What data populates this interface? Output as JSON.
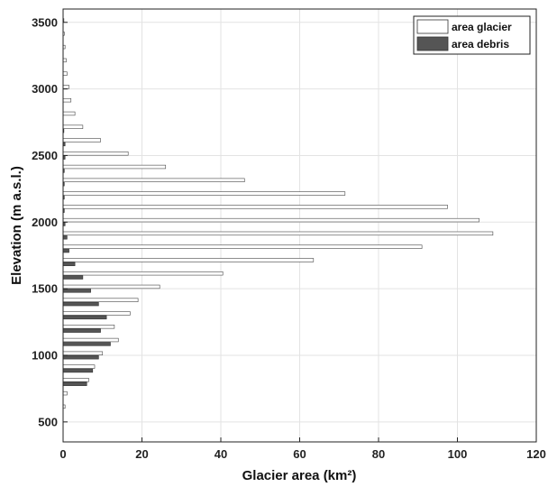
{
  "chart_data": {
    "type": "bar",
    "orientation": "horizontal",
    "xlabel": "Glacier area (km²)",
    "ylabel": "Elevation (m a.s.l.)",
    "xlim": [
      0,
      120
    ],
    "ylim": [
      350,
      3600
    ],
    "x_ticks": [
      0,
      20,
      40,
      60,
      80,
      100,
      120
    ],
    "y_ticks": [
      500,
      1000,
      1500,
      2000,
      2500,
      3000,
      3500
    ],
    "grid": true,
    "legend_position": "top-right",
    "bin_width": 100,
    "series": [
      {
        "name": "area glacier",
        "color": "#ffffff",
        "elevations": [
          3500,
          3400,
          3300,
          3200,
          3100,
          3000,
          2900,
          2800,
          2700,
          2600,
          2500,
          2400,
          2300,
          2200,
          2100,
          2000,
          1900,
          1800,
          1700,
          1600,
          1500,
          1400,
          1300,
          1200,
          1100,
          1000,
          900,
          800,
          700,
          600
        ],
        "values": [
          0.2,
          0.3,
          0.5,
          0.8,
          1.0,
          1.5,
          2.0,
          3.0,
          5.0,
          9.5,
          16.5,
          26.0,
          46.0,
          71.5,
          97.5,
          105.5,
          109.0,
          91.0,
          63.5,
          40.5,
          24.5,
          19.0,
          17.0,
          13.0,
          14.0,
          10.0,
          8.0,
          6.5,
          1.0,
          0.5
        ]
      },
      {
        "name": "area debris",
        "color": "#555555",
        "elevations": [
          2700,
          2600,
          2500,
          2400,
          2300,
          2200,
          2100,
          2000,
          1900,
          1800,
          1700,
          1600,
          1500,
          1400,
          1300,
          1200,
          1100,
          1000,
          900,
          800
        ],
        "values": [
          0.2,
          0.5,
          0.5,
          0.3,
          0.3,
          0.3,
          0.3,
          0.5,
          1.0,
          1.5,
          3.0,
          5.0,
          7.0,
          9.0,
          11.0,
          9.5,
          12.0,
          9.0,
          7.5,
          6.0
        ]
      }
    ]
  }
}
